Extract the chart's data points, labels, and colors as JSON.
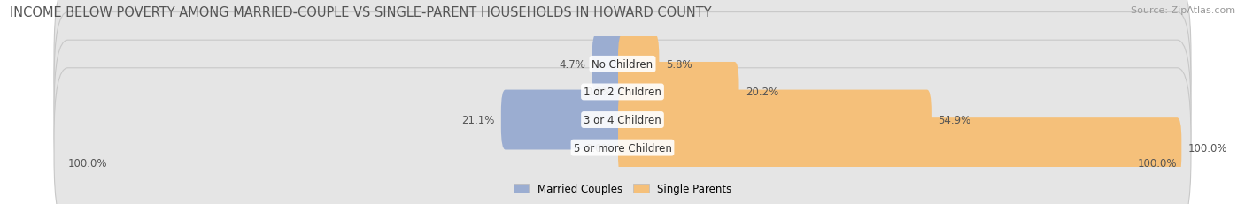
{
  "title": "INCOME BELOW POVERTY AMONG MARRIED-COUPLE VS SINGLE-PARENT HOUSEHOLDS IN HOWARD COUNTY",
  "source": "Source: ZipAtlas.com",
  "categories": [
    "No Children",
    "1 or 2 Children",
    "3 or 4 Children",
    "5 or more Children"
  ],
  "married_values": [
    4.7,
    0.0,
    21.1,
    0.0
  ],
  "single_values": [
    5.8,
    20.2,
    54.9,
    100.0
  ],
  "married_color": "#9badd1",
  "single_color": "#f5c07a",
  "bar_bg_color": "#e5e5e5",
  "bar_bg_border": "#d0d0d0",
  "title_fontsize": 10.5,
  "label_fontsize": 8.5,
  "source_fontsize": 8,
  "legend_labels": [
    "Married Couples",
    "Single Parents"
  ],
  "axis_label_left": "100.0%",
  "axis_label_right": "100.0%",
  "figsize": [
    14.06,
    2.32
  ],
  "dpi": 100
}
